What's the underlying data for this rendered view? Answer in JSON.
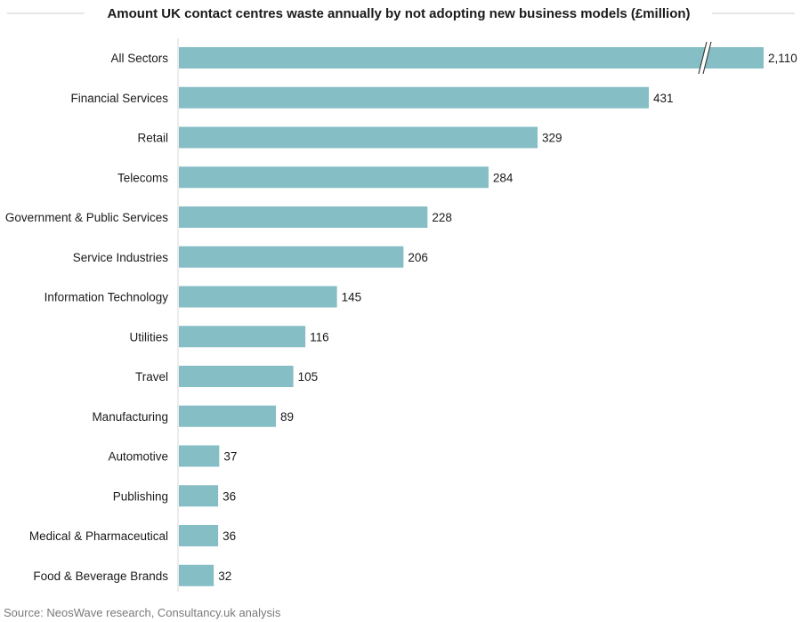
{
  "chart_data": {
    "type": "bar",
    "orientation": "horizontal",
    "title": "Amount UK contact centres waste annually by not adopting new business models (£million)",
    "categories": [
      "All Sectors",
      "Financial Services",
      "Retail",
      "Telecoms",
      "Government & Public Services",
      "Service Industries",
      "Information Technology",
      "Utilities",
      "Travel",
      "Manufacturing",
      "Automotive",
      "Publishing",
      "Medical & Pharmaceutical",
      "Food & Beverage Brands"
    ],
    "values": [
      2110,
      431,
      329,
      284,
      228,
      206,
      145,
      116,
      105,
      89,
      37,
      36,
      36,
      32
    ],
    "value_labels": [
      "2,110",
      "431",
      "329",
      "284",
      "228",
      "206",
      "145",
      "116",
      "105",
      "89",
      "37",
      "36",
      "36",
      "32"
    ],
    "axis_break": {
      "category": "All Sectors"
    },
    "bar_color": "#86bec6",
    "grid": false,
    "legend": "none"
  },
  "source": "Source: NeosWave research, Consultancy.uk analysis"
}
